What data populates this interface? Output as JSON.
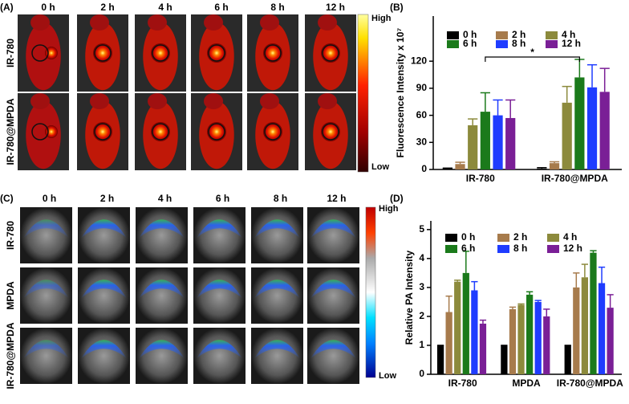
{
  "panel_a": {
    "label": "(A)",
    "columns": [
      "0 h",
      "2 h",
      "4 h",
      "6 h",
      "8 h",
      "12 h"
    ],
    "rows": [
      "IR-780",
      "IR-780@MPDA"
    ],
    "scale_high": "High",
    "scale_low": "Low"
  },
  "panel_c": {
    "label": "(C)",
    "columns": [
      "0 h",
      "2 h",
      "4 h",
      "6 h",
      "8 h",
      "12 h"
    ],
    "rows": [
      "IR-780",
      "MPDA",
      "IR-780@MPDA"
    ],
    "scale_high": "High",
    "scale_low": "Low"
  },
  "chart_data": [
    {
      "type": "bar",
      "panel": "(B)",
      "ylabel": "Fluorescence Intensity x 10⁷",
      "categories": [
        "IR-780",
        "IR-780@MPDA"
      ],
      "series": [
        {
          "name": "0 h",
          "color": "#000000",
          "values": [
            1,
            1
          ],
          "errors": [
            0.5,
            1
          ]
        },
        {
          "name": "2 h",
          "color": "#a77b4c",
          "values": [
            6,
            7
          ],
          "errors": [
            2,
            1.5
          ]
        },
        {
          "name": "4 h",
          "color": "#8c8a3c",
          "values": [
            49,
            74
          ],
          "errors": [
            7,
            18
          ]
        },
        {
          "name": "6 h",
          "color": "#1b7a1b",
          "values": [
            64,
            102
          ],
          "errors": [
            21,
            20
          ]
        },
        {
          "name": "8 h",
          "color": "#1f3cff",
          "values": [
            60,
            91
          ],
          "errors": [
            17,
            25
          ]
        },
        {
          "name": "12 h",
          "color": "#7a1f96",
          "values": [
            57,
            86
          ],
          "errors": [
            20,
            26
          ]
        }
      ],
      "ylim": [
        0,
        170
      ],
      "yticks": [
        0,
        30,
        60,
        90,
        120
      ],
      "annotation": "*"
    },
    {
      "type": "bar",
      "panel": "(D)",
      "ylabel": "Relative PA Intensity",
      "categories": [
        "IR-780",
        "MPDA",
        "IR-780@MPDA"
      ],
      "series": [
        {
          "name": "0 h",
          "color": "#000000",
          "values": [
            1,
            1,
            1
          ],
          "errors": [
            0,
            0,
            0
          ]
        },
        {
          "name": "2 h",
          "color": "#a77b4c",
          "values": [
            2.15,
            2.25,
            3.0
          ],
          "errors": [
            0.55,
            0.07,
            0.5
          ]
        },
        {
          "name": "4 h",
          "color": "#8c8a3c",
          "values": [
            3.2,
            2.4,
            3.35
          ],
          "errors": [
            0.05,
            0.03,
            0.45
          ]
        },
        {
          "name": "6 h",
          "color": "#1b7a1b",
          "values": [
            3.5,
            2.75,
            4.2
          ],
          "errors": [
            0.75,
            0.1,
            0.07
          ]
        },
        {
          "name": "8 h",
          "color": "#1f3cff",
          "values": [
            2.9,
            2.5,
            3.15
          ],
          "errors": [
            0.3,
            0.05,
            0.55
          ]
        },
        {
          "name": "12 h",
          "color": "#7a1f96",
          "values": [
            1.75,
            2.0,
            2.3
          ],
          "errors": [
            0.12,
            0.25,
            0.45
          ]
        }
      ],
      "ylim": [
        0,
        5.3
      ],
      "yticks": [
        0,
        1,
        2,
        3,
        4,
        5
      ]
    }
  ]
}
